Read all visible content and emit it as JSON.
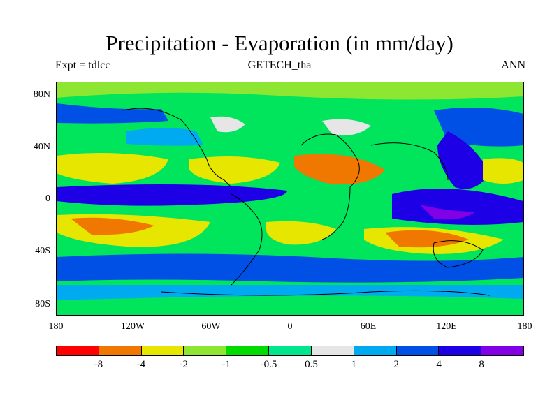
{
  "title": "Precipitation - Evaporation (in mm/day)",
  "expt_label": "Expt = tdlcc",
  "dataset_label": "GETECH_tha",
  "season_label": "ANN",
  "lat_labels": [
    "80N",
    "40N",
    "0",
    "40S",
    "80S"
  ],
  "lon_labels": [
    "180",
    "120W",
    "60W",
    "0",
    "60E",
    "120E",
    "180"
  ],
  "colorbar": {
    "levels": [
      "-8",
      "-4",
      "-2",
      "-1",
      "-0.5",
      "0.5",
      "1",
      "2",
      "4",
      "8"
    ],
    "colors": [
      "#ff0000",
      "#f07800",
      "#e6e600",
      "#8ce632",
      "#00dc00",
      "#00e68c",
      "#e6e6e6",
      "#00aaf0",
      "#0050e6",
      "#1e00e6",
      "#8200e6"
    ]
  },
  "icons": {
    "map": "precipitation-minus-evaporation-map"
  }
}
